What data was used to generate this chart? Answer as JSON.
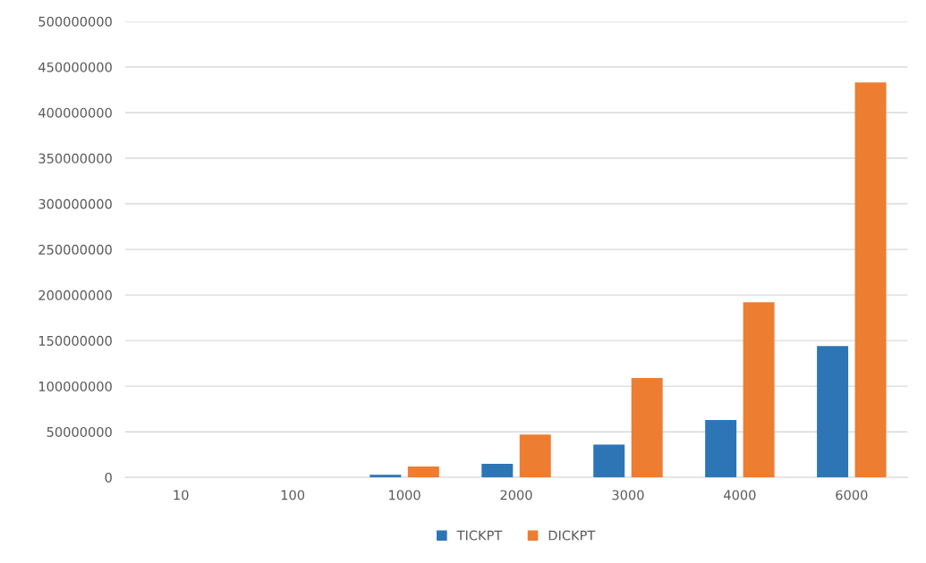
{
  "chart_data": {
    "type": "bar",
    "categories": [
      "10",
      "100",
      "1000",
      "2000",
      "3000",
      "4000",
      "6000"
    ],
    "series": [
      {
        "name": "TICKPT",
        "color": "#2e75b6",
        "values": [
          0,
          0,
          3000000,
          15000000,
          36000000,
          63000000,
          144000000
        ]
      },
      {
        "name": "DICKPT",
        "color": "#ed7d31",
        "values": [
          0,
          0,
          12000000,
          47000000,
          109000000,
          192000000,
          433000000
        ]
      }
    ],
    "ylim": [
      0,
      500000000
    ],
    "yticks": [
      0,
      50000000,
      100000000,
      150000000,
      200000000,
      250000000,
      300000000,
      350000000,
      400000000,
      450000000,
      500000000
    ],
    "grid": "y",
    "legend": "bottom"
  }
}
